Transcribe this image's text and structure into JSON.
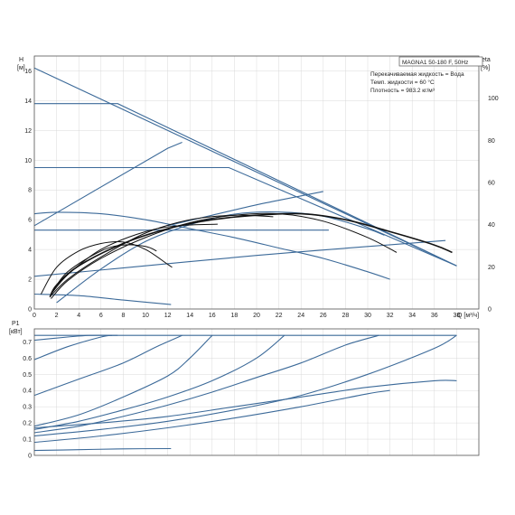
{
  "chart_data": [
    {
      "type": "line",
      "title": "MAGNA1 50-180 F, 50Hz",
      "info": [
        "Перекачиваемая жидкость = Вода",
        "Темп. жидкости = 60 °C",
        "Плотность = 983.2 кг/м³"
      ],
      "ylabel": [
        "H",
        "[м]"
      ],
      "y2label": [
        "eta",
        "[%]"
      ],
      "xlabel": "Q [м³/ч]",
      "xlim": [
        0,
        40
      ],
      "ylim": [
        0,
        17
      ],
      "y2lim": [
        0,
        120
      ],
      "xticks": [
        0,
        2,
        4,
        6,
        8,
        10,
        12,
        14,
        16,
        18,
        20,
        22,
        24,
        26,
        28,
        30,
        32,
        34,
        36,
        38
      ],
      "yticks": [
        0,
        2,
        4,
        6,
        8,
        10,
        12,
        14,
        16
      ],
      "y2ticks": [
        0,
        20,
        40,
        60,
        80,
        100
      ],
      "head_series": [
        {
          "style": "blue",
          "x": [
            0,
            38
          ],
          "y": [
            16.2,
            2.9
          ]
        },
        {
          "style": "blue",
          "x": [
            0,
            7.5,
            38
          ],
          "y": [
            13.8,
            13.8,
            2.9
          ]
        },
        {
          "style": "blue",
          "x": [
            0,
            17.5,
            38
          ],
          "y": [
            9.5,
            9.5,
            2.9
          ]
        },
        {
          "style": "blue",
          "x": [
            0,
            26.5
          ],
          "y": [
            5.3,
            5.3
          ]
        },
        {
          "style": "blue",
          "x": [
            0,
            12,
            13.3
          ],
          "y": [
            5.6,
            10.8,
            11.2
          ]
        },
        {
          "style": "blue",
          "x": [
            0,
            2,
            6,
            10,
            14,
            18,
            22,
            26,
            30,
            32
          ],
          "y": [
            6.4,
            6.5,
            6.4,
            6.0,
            5.4,
            4.8,
            4.1,
            3.4,
            2.5,
            2.0
          ]
        },
        {
          "style": "blue",
          "x": [
            0,
            4,
            8,
            12.3
          ],
          "y": [
            1.0,
            0.9,
            0.6,
            0.3
          ]
        },
        {
          "style": "blue",
          "x": [
            0,
            10,
            20,
            30,
            37
          ],
          "y": [
            2.2,
            2.9,
            3.6,
            4.2,
            4.6
          ]
        },
        {
          "style": "blue",
          "x": [
            12,
            16,
            20,
            24,
            26
          ],
          "y": [
            5.6,
            6.3,
            7.0,
            7.6,
            7.9
          ]
        },
        {
          "style": "black",
          "x": [
            1.4,
            2,
            4,
            8,
            12,
            16,
            20,
            24,
            28,
            32,
            36,
            37.6
          ],
          "y": [
            0.8,
            1.6,
            2.9,
            4.4,
            5.4,
            6.0,
            6.3,
            6.4,
            6.0,
            5.2,
            4.3,
            3.8
          ]
        },
        {
          "style": "black",
          "x": [
            1.5,
            3,
            6,
            10,
            14,
            18,
            22,
            26,
            30,
            32.6
          ],
          "y": [
            0.7,
            1.9,
            3.4,
            4.8,
            5.8,
            6.3,
            6.4,
            5.9,
            4.8,
            3.8
          ]
        },
        {
          "style": "black",
          "x": [
            1.5,
            3,
            6,
            10,
            14,
            18,
            21.5
          ],
          "y": [
            0.9,
            2.0,
            3.5,
            5.1,
            6.0,
            6.3,
            6.2
          ]
        },
        {
          "style": "black",
          "x": [
            1.5,
            3,
            6,
            10,
            13,
            16.5
          ],
          "y": [
            1.0,
            2.3,
            4.0,
            5.2,
            5.6,
            5.7
          ]
        },
        {
          "style": "black",
          "x": [
            0.6,
            2,
            4,
            6,
            8,
            10,
            12,
            12.4
          ],
          "y": [
            1.0,
            2.8,
            3.9,
            4.4,
            4.5,
            4.0,
            3.0,
            2.8
          ]
        },
        {
          "style": "black",
          "x": [
            1.5,
            3,
            6,
            8,
            10,
            11
          ],
          "y": [
            1.0,
            2.5,
            3.9,
            4.3,
            4.2,
            3.9
          ]
        }
      ],
      "eta_series": [
        {
          "style": "blue",
          "x": [
            2,
            6,
            10,
            14,
            18,
            22,
            26,
            30,
            31.5
          ],
          "y": [
            3,
            19,
            32,
            40,
            45,
            46,
            44,
            38,
            35
          ]
        }
      ]
    },
    {
      "type": "line",
      "ylabel": [
        "P1",
        "[кВт]"
      ],
      "xlim": [
        0,
        40
      ],
      "ylim": [
        0,
        0.78
      ],
      "yticks": [
        0,
        0.1,
        0.2,
        0.3,
        0.4,
        0.5,
        0.6,
        0.7
      ],
      "power_series": [
        {
          "x": [
            0,
            38
          ],
          "y": [
            0.74,
            0.74
          ]
        },
        {
          "x": [
            0,
            4,
            8,
            12.3
          ],
          "y": [
            0.03,
            0.035,
            0.04,
            0.042
          ]
        },
        {
          "x": [
            0,
            6,
            12,
            18,
            24,
            30,
            32
          ],
          "y": [
            0.08,
            0.12,
            0.17,
            0.23,
            0.3,
            0.38,
            0.4
          ]
        },
        {
          "x": [
            0,
            6,
            12,
            18,
            24,
            30,
            36,
            38
          ],
          "y": [
            0.12,
            0.16,
            0.21,
            0.28,
            0.37,
            0.5,
            0.66,
            0.74
          ]
        },
        {
          "x": [
            0,
            4,
            8,
            12,
            16,
            20,
            24,
            28,
            31
          ],
          "y": [
            0.14,
            0.18,
            0.24,
            0.31,
            0.39,
            0.48,
            0.57,
            0.68,
            0.74
          ]
        },
        {
          "x": [
            0,
            4,
            8,
            12,
            16,
            20,
            22.5
          ],
          "y": [
            0.16,
            0.21,
            0.28,
            0.36,
            0.46,
            0.6,
            0.74
          ]
        },
        {
          "x": [
            0,
            4,
            8,
            12,
            14,
            16
          ],
          "y": [
            0.18,
            0.25,
            0.36,
            0.49,
            0.6,
            0.74
          ]
        },
        {
          "x": [
            0,
            4,
            8,
            11,
            13.3
          ],
          "y": [
            0.37,
            0.47,
            0.57,
            0.67,
            0.74
          ]
        },
        {
          "x": [
            0,
            3,
            6,
            7
          ],
          "y": [
            0.59,
            0.67,
            0.73,
            0.74
          ]
        },
        {
          "x": [
            0,
            3,
            5,
            7.5
          ],
          "y": [
            0.71,
            0.73,
            0.74,
            0.74
          ]
        },
        {
          "x": [
            0,
            6,
            12,
            18,
            24,
            30,
            36,
            38
          ],
          "y": [
            0.17,
            0.2,
            0.24,
            0.3,
            0.36,
            0.42,
            0.46,
            0.46
          ]
        }
      ]
    }
  ]
}
